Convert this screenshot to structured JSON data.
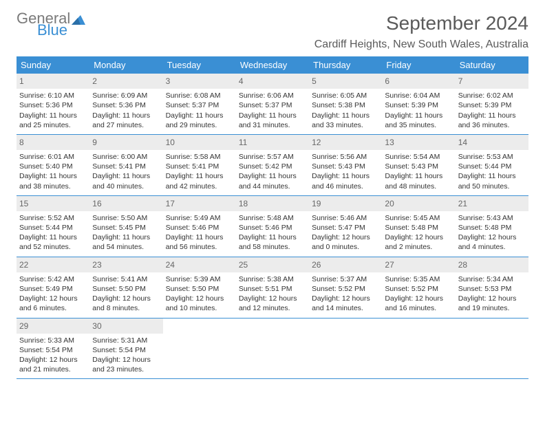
{
  "logo": {
    "part1": "General",
    "part2": "Blue"
  },
  "title": "September 2024",
  "location": "Cardiff Heights, New South Wales, Australia",
  "colors": {
    "header_bg": "#3a8fd4",
    "header_text": "#ffffff",
    "daynum_bg": "#ececec",
    "week_border": "#3a8fd4",
    "logo_gray": "#7a7a7a",
    "logo_blue": "#3a8fd4",
    "text": "#333333"
  },
  "daysOfWeek": [
    "Sunday",
    "Monday",
    "Tuesday",
    "Wednesday",
    "Thursday",
    "Friday",
    "Saturday"
  ],
  "weeks": [
    [
      {
        "n": "1",
        "sr": "Sunrise: 6:10 AM",
        "ss": "Sunset: 5:36 PM",
        "d1": "Daylight: 11 hours",
        "d2": "and 25 minutes."
      },
      {
        "n": "2",
        "sr": "Sunrise: 6:09 AM",
        "ss": "Sunset: 5:36 PM",
        "d1": "Daylight: 11 hours",
        "d2": "and 27 minutes."
      },
      {
        "n": "3",
        "sr": "Sunrise: 6:08 AM",
        "ss": "Sunset: 5:37 PM",
        "d1": "Daylight: 11 hours",
        "d2": "and 29 minutes."
      },
      {
        "n": "4",
        "sr": "Sunrise: 6:06 AM",
        "ss": "Sunset: 5:37 PM",
        "d1": "Daylight: 11 hours",
        "d2": "and 31 minutes."
      },
      {
        "n": "5",
        "sr": "Sunrise: 6:05 AM",
        "ss": "Sunset: 5:38 PM",
        "d1": "Daylight: 11 hours",
        "d2": "and 33 minutes."
      },
      {
        "n": "6",
        "sr": "Sunrise: 6:04 AM",
        "ss": "Sunset: 5:39 PM",
        "d1": "Daylight: 11 hours",
        "d2": "and 35 minutes."
      },
      {
        "n": "7",
        "sr": "Sunrise: 6:02 AM",
        "ss": "Sunset: 5:39 PM",
        "d1": "Daylight: 11 hours",
        "d2": "and 36 minutes."
      }
    ],
    [
      {
        "n": "8",
        "sr": "Sunrise: 6:01 AM",
        "ss": "Sunset: 5:40 PM",
        "d1": "Daylight: 11 hours",
        "d2": "and 38 minutes."
      },
      {
        "n": "9",
        "sr": "Sunrise: 6:00 AM",
        "ss": "Sunset: 5:41 PM",
        "d1": "Daylight: 11 hours",
        "d2": "and 40 minutes."
      },
      {
        "n": "10",
        "sr": "Sunrise: 5:58 AM",
        "ss": "Sunset: 5:41 PM",
        "d1": "Daylight: 11 hours",
        "d2": "and 42 minutes."
      },
      {
        "n": "11",
        "sr": "Sunrise: 5:57 AM",
        "ss": "Sunset: 5:42 PM",
        "d1": "Daylight: 11 hours",
        "d2": "and 44 minutes."
      },
      {
        "n": "12",
        "sr": "Sunrise: 5:56 AM",
        "ss": "Sunset: 5:43 PM",
        "d1": "Daylight: 11 hours",
        "d2": "and 46 minutes."
      },
      {
        "n": "13",
        "sr": "Sunrise: 5:54 AM",
        "ss": "Sunset: 5:43 PM",
        "d1": "Daylight: 11 hours",
        "d2": "and 48 minutes."
      },
      {
        "n": "14",
        "sr": "Sunrise: 5:53 AM",
        "ss": "Sunset: 5:44 PM",
        "d1": "Daylight: 11 hours",
        "d2": "and 50 minutes."
      }
    ],
    [
      {
        "n": "15",
        "sr": "Sunrise: 5:52 AM",
        "ss": "Sunset: 5:44 PM",
        "d1": "Daylight: 11 hours",
        "d2": "and 52 minutes."
      },
      {
        "n": "16",
        "sr": "Sunrise: 5:50 AM",
        "ss": "Sunset: 5:45 PM",
        "d1": "Daylight: 11 hours",
        "d2": "and 54 minutes."
      },
      {
        "n": "17",
        "sr": "Sunrise: 5:49 AM",
        "ss": "Sunset: 5:46 PM",
        "d1": "Daylight: 11 hours",
        "d2": "and 56 minutes."
      },
      {
        "n": "18",
        "sr": "Sunrise: 5:48 AM",
        "ss": "Sunset: 5:46 PM",
        "d1": "Daylight: 11 hours",
        "d2": "and 58 minutes."
      },
      {
        "n": "19",
        "sr": "Sunrise: 5:46 AM",
        "ss": "Sunset: 5:47 PM",
        "d1": "Daylight: 12 hours",
        "d2": "and 0 minutes."
      },
      {
        "n": "20",
        "sr": "Sunrise: 5:45 AM",
        "ss": "Sunset: 5:48 PM",
        "d1": "Daylight: 12 hours",
        "d2": "and 2 minutes."
      },
      {
        "n": "21",
        "sr": "Sunrise: 5:43 AM",
        "ss": "Sunset: 5:48 PM",
        "d1": "Daylight: 12 hours",
        "d2": "and 4 minutes."
      }
    ],
    [
      {
        "n": "22",
        "sr": "Sunrise: 5:42 AM",
        "ss": "Sunset: 5:49 PM",
        "d1": "Daylight: 12 hours",
        "d2": "and 6 minutes."
      },
      {
        "n": "23",
        "sr": "Sunrise: 5:41 AM",
        "ss": "Sunset: 5:50 PM",
        "d1": "Daylight: 12 hours",
        "d2": "and 8 minutes."
      },
      {
        "n": "24",
        "sr": "Sunrise: 5:39 AM",
        "ss": "Sunset: 5:50 PM",
        "d1": "Daylight: 12 hours",
        "d2": "and 10 minutes."
      },
      {
        "n": "25",
        "sr": "Sunrise: 5:38 AM",
        "ss": "Sunset: 5:51 PM",
        "d1": "Daylight: 12 hours",
        "d2": "and 12 minutes."
      },
      {
        "n": "26",
        "sr": "Sunrise: 5:37 AM",
        "ss": "Sunset: 5:52 PM",
        "d1": "Daylight: 12 hours",
        "d2": "and 14 minutes."
      },
      {
        "n": "27",
        "sr": "Sunrise: 5:35 AM",
        "ss": "Sunset: 5:52 PM",
        "d1": "Daylight: 12 hours",
        "d2": "and 16 minutes."
      },
      {
        "n": "28",
        "sr": "Sunrise: 5:34 AM",
        "ss": "Sunset: 5:53 PM",
        "d1": "Daylight: 12 hours",
        "d2": "and 19 minutes."
      }
    ],
    [
      {
        "n": "29",
        "sr": "Sunrise: 5:33 AM",
        "ss": "Sunset: 5:54 PM",
        "d1": "Daylight: 12 hours",
        "d2": "and 21 minutes."
      },
      {
        "n": "30",
        "sr": "Sunrise: 5:31 AM",
        "ss": "Sunset: 5:54 PM",
        "d1": "Daylight: 12 hours",
        "d2": "and 23 minutes."
      },
      null,
      null,
      null,
      null,
      null
    ]
  ]
}
